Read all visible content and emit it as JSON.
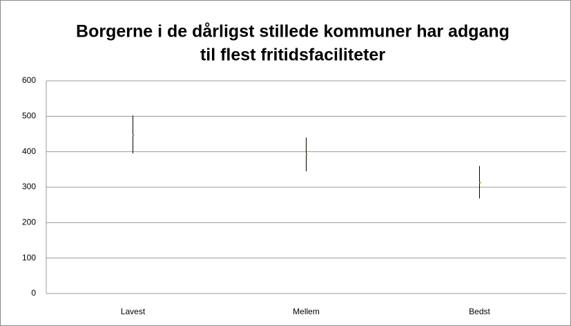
{
  "chart_data": {
    "type": "hilo",
    "title": [
      "Borgerne i de dårligst stillede kommuner har adgang",
      "til flest fritidsfaciliteter"
    ],
    "categories": [
      "Lavest",
      "Mellem",
      "Bedst"
    ],
    "values": [
      447,
      392,
      313
    ],
    "high": [
      502,
      440,
      360
    ],
    "low": [
      395,
      345,
      268
    ],
    "color": "#000000",
    "marker_color": "#9bbb59",
    "ylim": [
      0,
      600
    ],
    "yticks": [
      0,
      100,
      200,
      300,
      400,
      500,
      600
    ],
    "grid": true
  }
}
